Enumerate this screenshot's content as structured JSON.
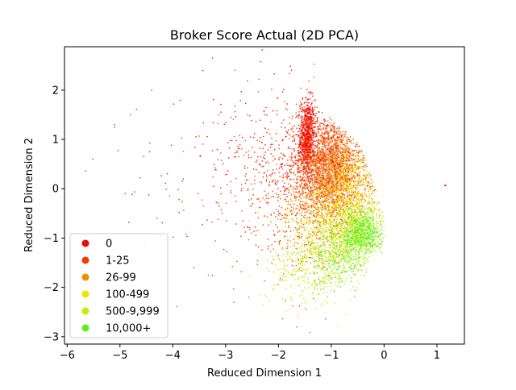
{
  "chart_data": {
    "type": "scatter",
    "title": "Broker Score Actual (2D PCA)",
    "xlabel": "Reduced Dimension 1",
    "ylabel": "Reduced Dimension 2",
    "xlim": [
      -6.05,
      1.52
    ],
    "ylim": [
      -3.15,
      2.88
    ],
    "xticks": [
      -6,
      -5,
      -4,
      -3,
      -2,
      -1,
      0,
      1
    ],
    "yticks": [
      -3,
      -2,
      -1,
      0,
      1,
      2
    ],
    "xtick_labels": [
      "−6",
      "−5",
      "−4",
      "−3",
      "−2",
      "−1",
      "0",
      "1"
    ],
    "ytick_labels": [
      "−3",
      "−2",
      "−1",
      "0",
      "1",
      "2"
    ],
    "grid": false,
    "legend_position": "lower-left",
    "series": [
      {
        "name": "0",
        "color": "#f00b00",
        "clusters": [
          {
            "cx": -1.45,
            "cy": 1.05,
            "sx": 0.07,
            "sy": 0.38,
            "n": 700
          },
          {
            "cx": -1.1,
            "cy": 0.55,
            "sx": 0.32,
            "sy": 0.45,
            "n": 500
          },
          {
            "cx": -1.9,
            "cy": 0.6,
            "sx": 0.65,
            "sy": 0.75,
            "n": 260
          },
          {
            "cx": -3.0,
            "cy": 0.3,
            "sx": 1.15,
            "sy": 0.95,
            "n": 90
          }
        ],
        "points": [
          {
            "x": 1.15,
            "y": 0.07
          },
          {
            "x": 1.17,
            "y": 0.06
          },
          {
            "x": 1.16,
            "y": 0.07
          },
          {
            "x": -5.65,
            "y": 0.36
          },
          {
            "x": -5.1,
            "y": 1.3
          },
          {
            "x": -5.1,
            "y": 1.25
          },
          {
            "x": -4.8,
            "y": 1.5
          },
          {
            "x": -4.4,
            "y": 2.0
          },
          {
            "x": -3.25,
            "y": 2.65
          },
          {
            "x": -4.3,
            "y": -0.6
          },
          {
            "x": -4.9,
            "y": -0.1
          },
          {
            "x": -3.6,
            "y": -1.6
          }
        ]
      },
      {
        "name": "1-25",
        "color": "#f53c00",
        "clusters": [
          {
            "cx": -1.05,
            "cy": 0.45,
            "sx": 0.34,
            "sy": 0.55,
            "n": 1100
          },
          {
            "cx": -1.5,
            "cy": 0.0,
            "sx": 0.45,
            "sy": 0.85,
            "n": 400
          },
          {
            "cx": -2.2,
            "cy": -0.3,
            "sx": 0.7,
            "sy": 0.9,
            "n": 150
          }
        ],
        "points": []
      },
      {
        "name": "26-99",
        "color": "#f28d00",
        "clusters": [
          {
            "cx": -0.85,
            "cy": 0.2,
            "sx": 0.3,
            "sy": 0.55,
            "n": 900
          },
          {
            "cx": -1.2,
            "cy": -0.4,
            "sx": 0.4,
            "sy": 0.6,
            "n": 300
          }
        ],
        "points": []
      },
      {
        "name": "100-499",
        "color": "#f2e200",
        "clusters": [
          {
            "cx": -0.7,
            "cy": -0.2,
            "sx": 0.33,
            "sy": 0.6,
            "n": 700
          },
          {
            "cx": -1.3,
            "cy": -0.9,
            "sx": 0.45,
            "sy": 0.55,
            "n": 250
          }
        ],
        "points": []
      },
      {
        "name": "500-9,999",
        "color": "#c1f000",
        "clusters": [
          {
            "cx": -0.8,
            "cy": -1.1,
            "sx": 0.38,
            "sy": 0.4,
            "n": 600
          },
          {
            "cx": -1.5,
            "cy": -1.7,
            "sx": 0.4,
            "sy": 0.35,
            "n": 220
          },
          {
            "cx": -0.45,
            "cy": -0.75,
            "sx": 0.2,
            "sy": 0.25,
            "n": 200
          }
        ],
        "points": []
      },
      {
        "name": "10,000+",
        "color": "#5ef015",
        "clusters": [
          {
            "cx": -0.4,
            "cy": -0.9,
            "sx": 0.18,
            "sy": 0.22,
            "n": 500
          },
          {
            "cx": -0.9,
            "cy": -1.4,
            "sx": 0.3,
            "sy": 0.3,
            "n": 200
          }
        ],
        "points": []
      }
    ]
  }
}
